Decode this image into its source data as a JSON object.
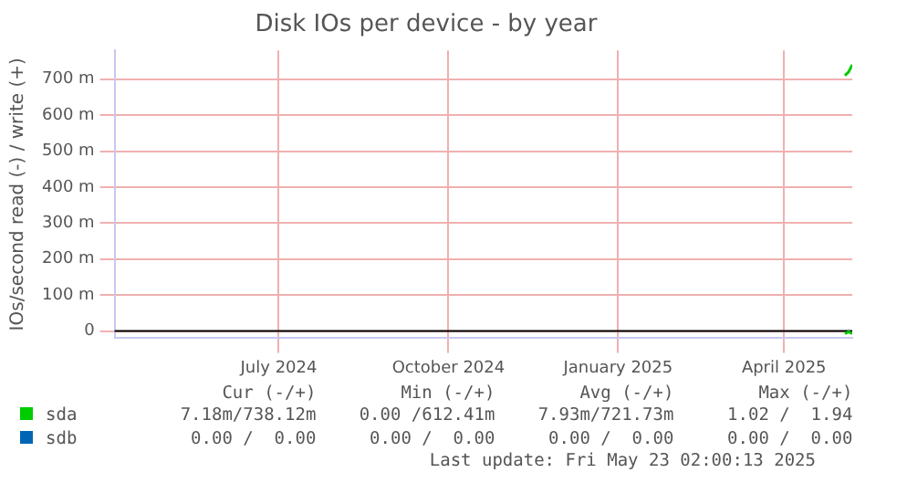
{
  "chart_data": {
    "type": "line",
    "title": "Disk IOs per device - by year",
    "ylabel": "IOs/second read (-) / write (+)",
    "xlim": [
      "2024-04-18",
      "2025-05-23"
    ],
    "xticks": [
      {
        "value": "2024-07-16",
        "label": "July 2024"
      },
      {
        "value": "2024-10-16",
        "label": "October 2024"
      },
      {
        "value": "2025-01-16",
        "label": "January 2025"
      },
      {
        "value": "2025-04-16",
        "label": "April 2025"
      }
    ],
    "ylim": [
      -20,
      780
    ],
    "yticks": [
      0,
      {
        "value": 100,
        "label": "100 m"
      },
      {
        "value": 200,
        "label": "200 m"
      },
      {
        "value": 300,
        "label": "300 m"
      },
      {
        "value": 400,
        "label": "400 m"
      },
      {
        "value": 500,
        "label": "500 m"
      },
      {
        "value": 600,
        "label": "600 m"
      },
      {
        "value": 700,
        "label": "700 m"
      }
    ],
    "grid": true,
    "legend": "bottom",
    "marker": "none",
    "line_style": "solid",
    "series": [
      {
        "name": "sda",
        "color": "#00cc00",
        "x": [
          "2025-05-19",
          "2025-05-21",
          "2025-05-23"
        ],
        "values": [
          710,
          720,
          740
        ]
      },
      {
        "color": "#00c400",
        "x": [
          "2025-05-19",
          "2025-05-21",
          "2025-05-23"
        ],
        "values": [
          -7,
          -2,
          -7
        ]
      },
      {
        "name": "sdb",
        "color": "#0066b3"
      }
    ],
    "annotations": [
      "Cur (-/+)",
      "Min (-/+)",
      "Avg (-/+)",
      "Max (-/+)",
      "7.18m/738.12m",
      "0.00 /612.41m",
      "7.93m/721.73m",
      "1.02 /  1.94",
      "0.00 /  0.00",
      "0.00 /  0.00",
      "0.00 /  0.00",
      "0.00 /  0.00",
      "Last update: Fri May 23 02:00:13 2025"
    ]
  }
}
